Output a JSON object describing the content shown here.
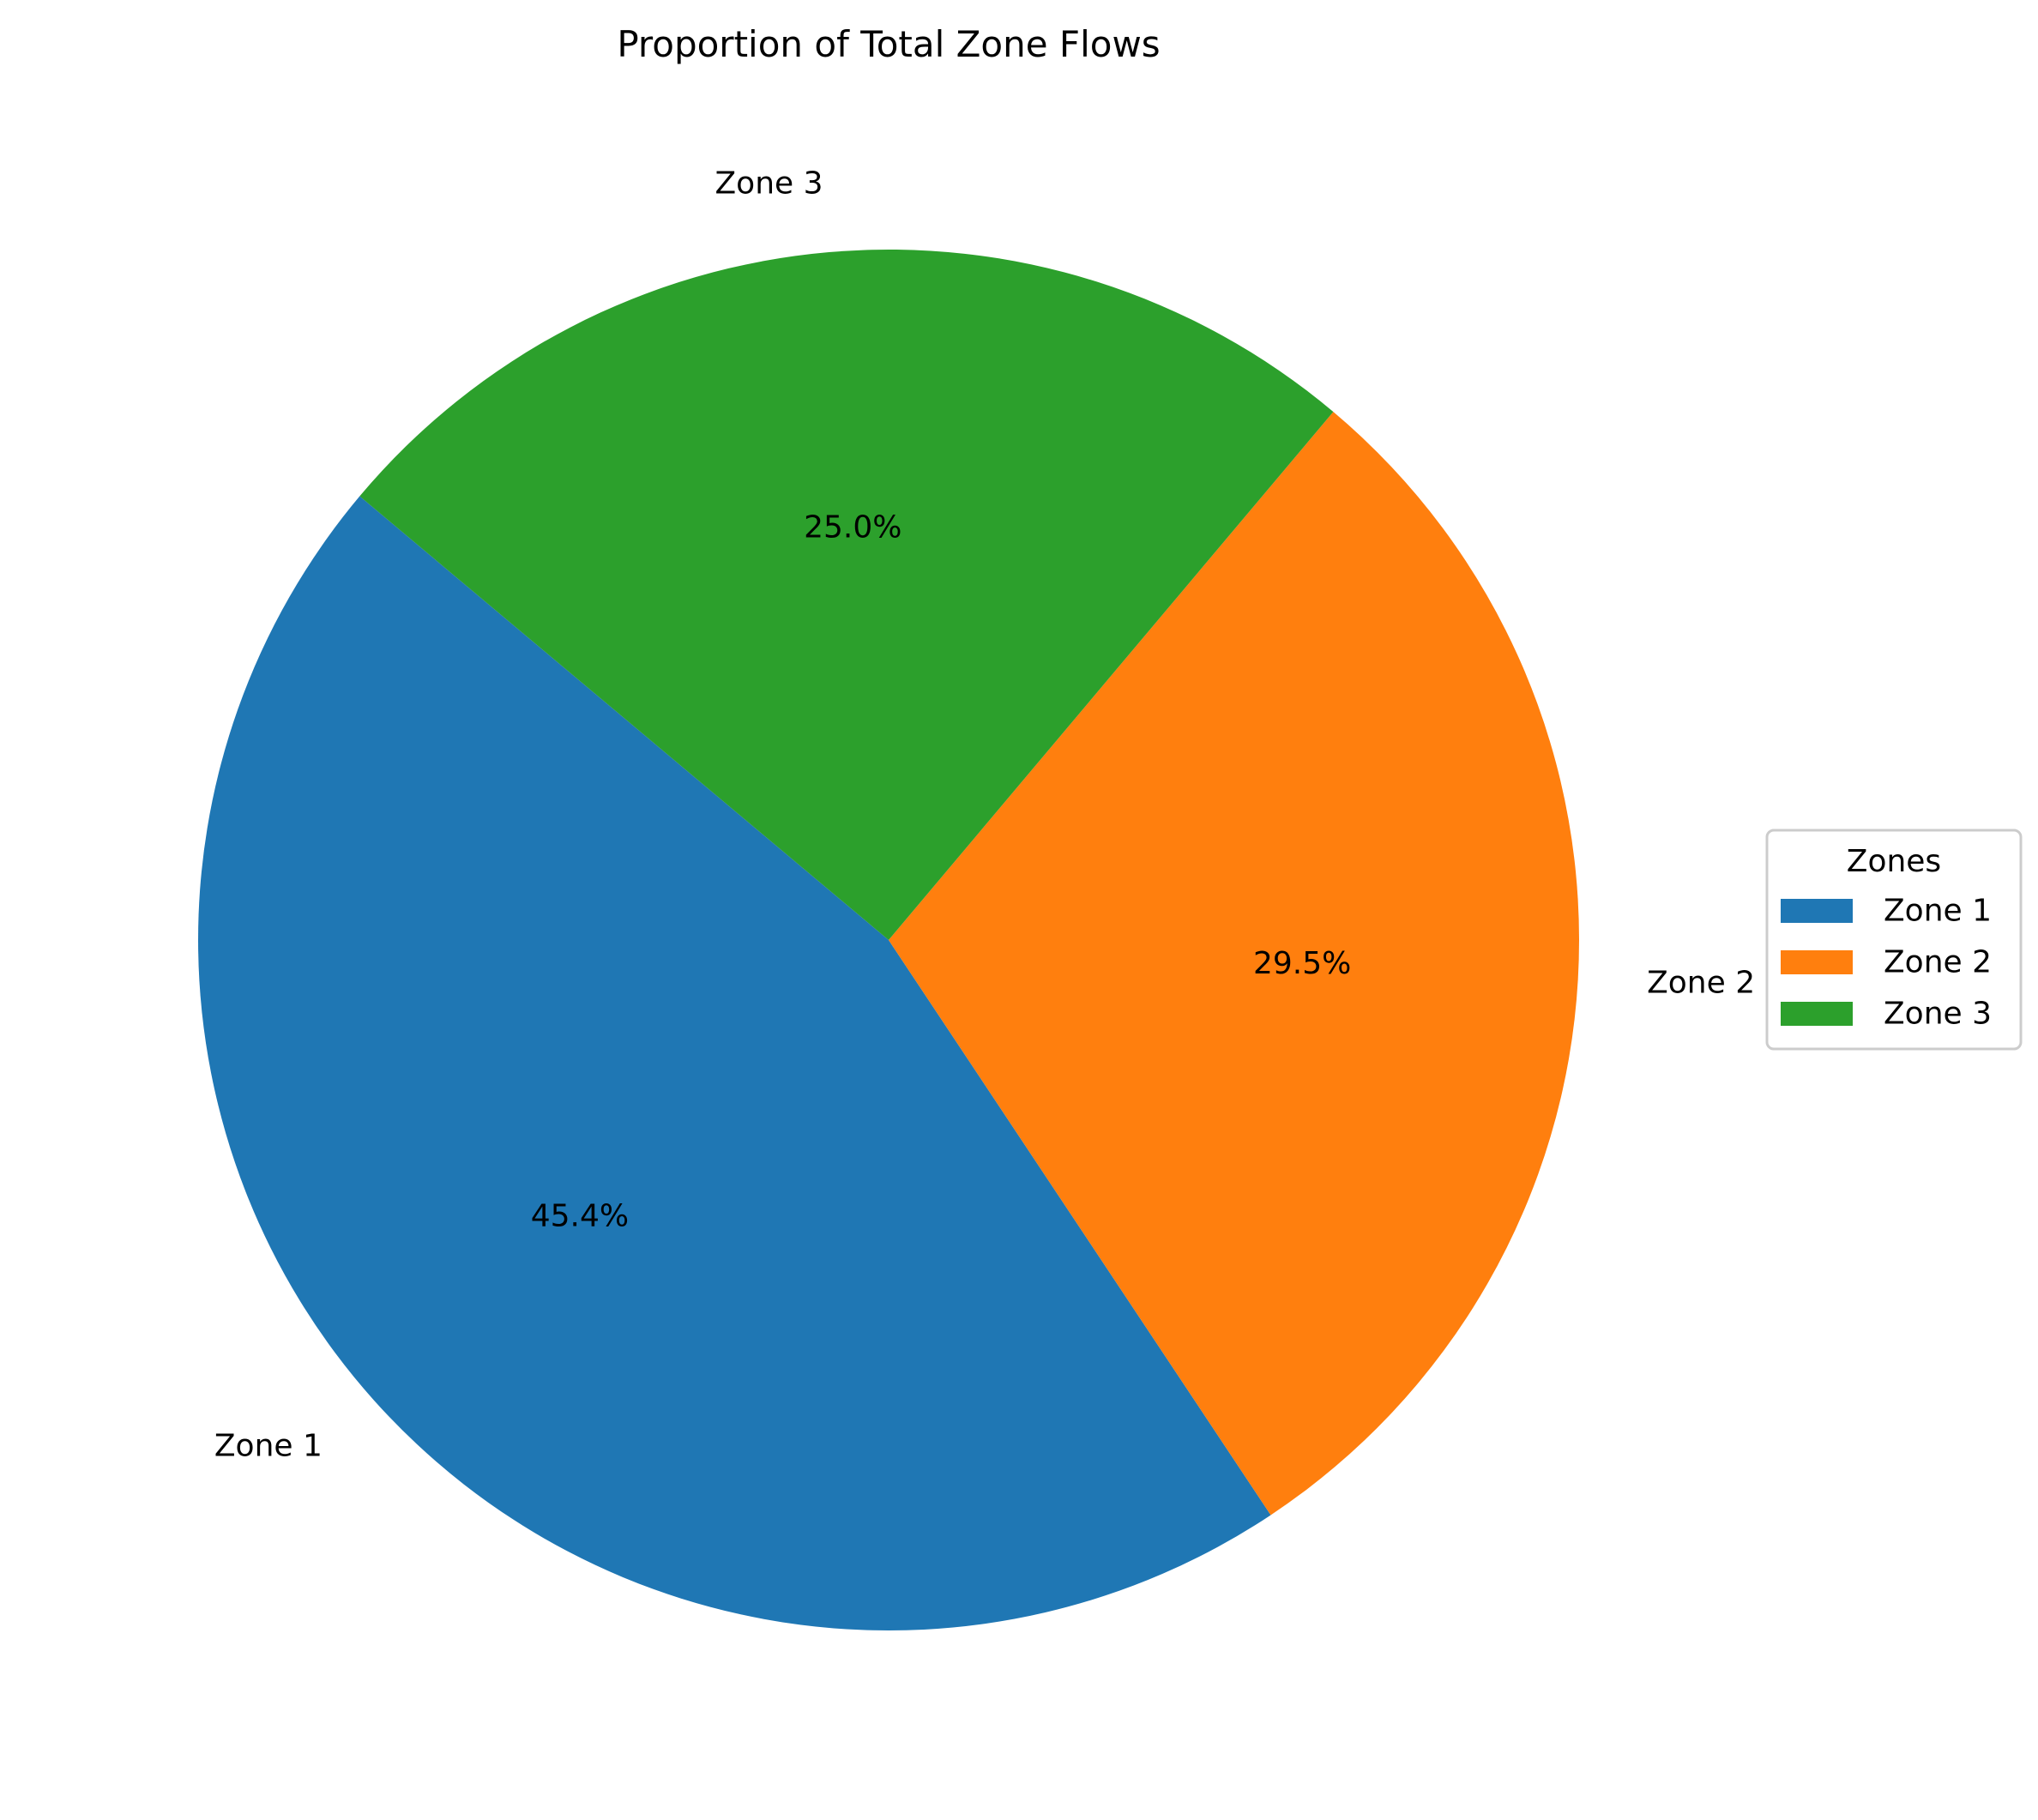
{
  "chart_data": {
    "type": "pie",
    "title": "Proportion of Total Zone Flows",
    "categories": [
      "Zone 1",
      "Zone 2",
      "Zone 3"
    ],
    "values": [
      45.4,
      29.5,
      25.0
    ],
    "value_labels": [
      "45.4%",
      "29.5%",
      "25.0%"
    ],
    "colors": [
      "#1f77b4",
      "#ff7f0e",
      "#2ca02c"
    ],
    "start_angle_deg": 140,
    "direction": "counterclockwise",
    "legend": {
      "title": "Zones",
      "entries": [
        "Zone 1",
        "Zone 2",
        "Zone 3"
      ],
      "placement": "center-right"
    }
  }
}
